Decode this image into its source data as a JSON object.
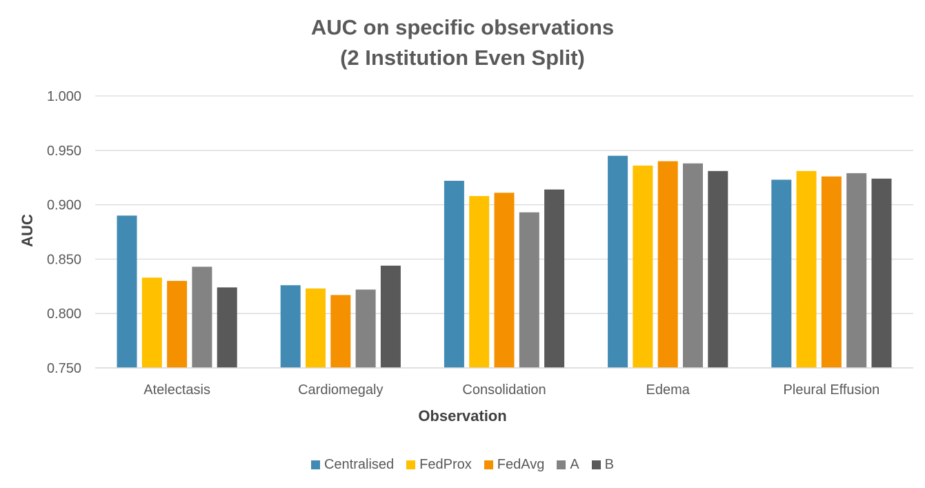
{
  "chart_data": {
    "type": "bar",
    "title_line1": "AUC on specific observations",
    "title_line2": "(2 Institution Even Split)",
    "xlabel": "Observation",
    "ylabel": "AUC",
    "ylim": [
      0.75,
      1.0
    ],
    "yticks": [
      "0.750",
      "0.800",
      "0.850",
      "0.900",
      "0.950",
      "1.000"
    ],
    "ytick_values": [
      0.75,
      0.8,
      0.85,
      0.9,
      0.95,
      1.0
    ],
    "grid": true,
    "legend_position": "bottom",
    "categories": [
      "Atelectasis",
      "Cardiomegaly",
      "Consolidation",
      "Edema",
      "Pleural Effusion"
    ],
    "series": [
      {
        "name": "Centralised",
        "color": "#418AB3",
        "values": [
          0.89,
          0.826,
          0.922,
          0.945,
          0.923
        ]
      },
      {
        "name": "FedProx",
        "color": "#FFC000",
        "values": [
          0.833,
          0.823,
          0.908,
          0.936,
          0.931
        ]
      },
      {
        "name": "FedAvg",
        "color": "#F59100",
        "values": [
          0.83,
          0.817,
          0.911,
          0.94,
          0.926
        ]
      },
      {
        "name": "A",
        "color": "#838383",
        "values": [
          0.843,
          0.822,
          0.893,
          0.938,
          0.929
        ]
      },
      {
        "name": "B",
        "color": "#595959",
        "values": [
          0.824,
          0.844,
          0.914,
          0.931,
          0.924
        ]
      }
    ]
  }
}
